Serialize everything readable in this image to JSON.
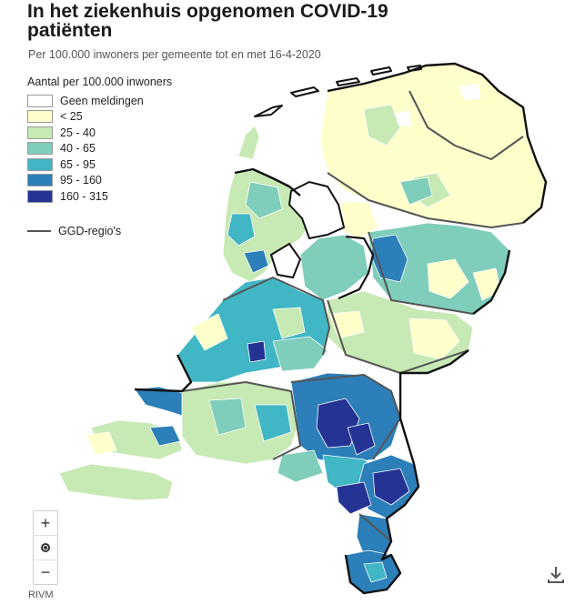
{
  "title": "In het ziekenhuis opgenomen COVID-19 patiënten",
  "subtitle": "Per 100.000 inwoners per gemeente tot en met 16-4-2020",
  "legend": {
    "title": "Aantal per 100.000 inwoners",
    "items": [
      {
        "label": "Geen meldingen",
        "color": "#ffffff"
      },
      {
        "label": "< 25",
        "color": "#ffffcc"
      },
      {
        "label": "25 - 40",
        "color": "#c7e9b4"
      },
      {
        "label": "40 - 65",
        "color": "#7fcdbb"
      },
      {
        "label": "65 - 95",
        "color": "#41b6c4"
      },
      {
        "label": "95 - 160",
        "color": "#2c7fb8"
      },
      {
        "label": "160 - 315",
        "color": "#253494"
      }
    ],
    "boundary_label": "GGD-regio's",
    "boundary_color": "#555555"
  },
  "controls": {
    "zoom_in": "+",
    "zoom_out": "−",
    "reset_icon": "target-icon",
    "download_icon": "download-icon"
  },
  "source": "RIVM"
}
